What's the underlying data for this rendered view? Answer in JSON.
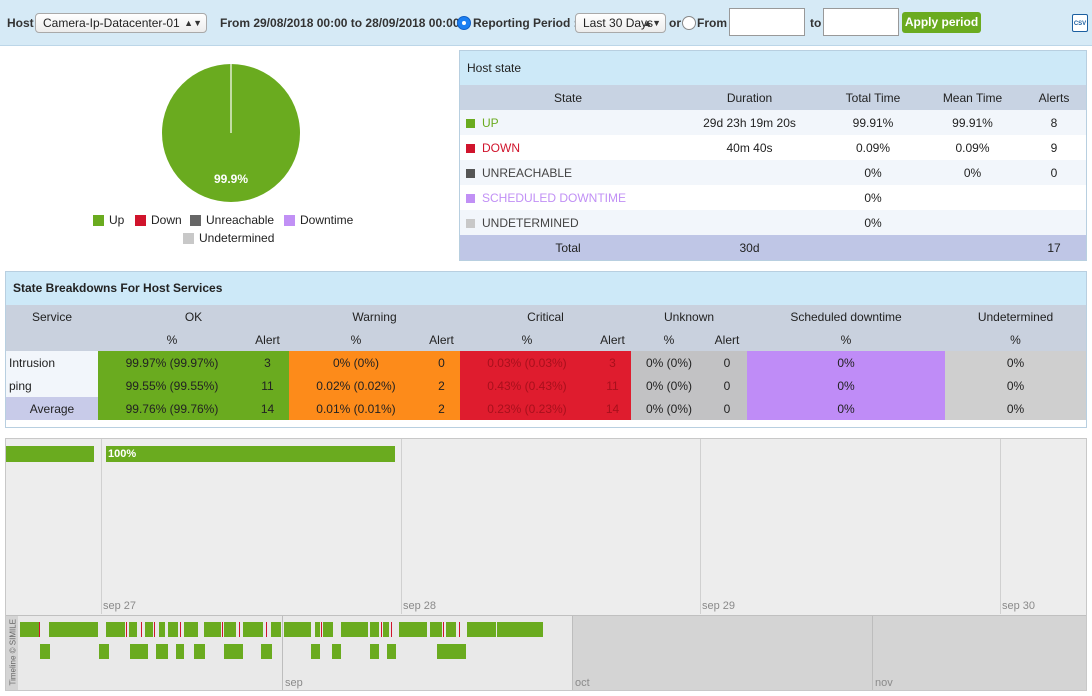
{
  "topbar": {
    "host_label": "Host",
    "host_value": "Camera-Ip-Datacenter-01",
    "date_range": "From 29/08/2018 00:00 to 28/09/2018 00:00",
    "reporting_period_label": "Reporting Period :",
    "period_value": "Last 30 Days",
    "or_label": "or",
    "from_label": "From",
    "to_label": "to",
    "from_value": "",
    "to_value": "",
    "apply_label": "Apply period",
    "csv_label": "CSV"
  },
  "pie": {
    "label": "99.9%",
    "legend": [
      {
        "name": "Up",
        "color": "#6aab1f"
      },
      {
        "name": "Down",
        "color": "#d0142c"
      },
      {
        "name": "Unreachable",
        "color": "#666666"
      },
      {
        "name": "Downtime",
        "color": "#c190f5"
      },
      {
        "name": "Undetermined",
        "color": "#c8c8c8"
      }
    ]
  },
  "host_state": {
    "title": "Host state",
    "columns": [
      "State",
      "Duration",
      "Total Time",
      "Mean Time",
      "Alerts"
    ],
    "rows": [
      {
        "state": "UP",
        "color": "#6aab1f",
        "duration": "29d 23h 19m 20s",
        "total": "99.91%",
        "mean": "99.91%",
        "alerts": "8"
      },
      {
        "state": "DOWN",
        "color": "#d0142c",
        "duration": "40m 40s",
        "total": "0.09%",
        "mean": "0.09%",
        "alerts": "9"
      },
      {
        "state": "UNREACHABLE",
        "color": "#555555",
        "duration": "",
        "total": "0%",
        "mean": "0%",
        "alerts": "0"
      },
      {
        "state": "SCHEDULED DOWNTIME",
        "color": "#c190f5",
        "duration": "",
        "total": "0%",
        "mean": "",
        "alerts": ""
      },
      {
        "state": "UNDETERMINED",
        "color": "#c8c8c8",
        "duration": "",
        "total": "0%",
        "mean": "",
        "alerts": ""
      }
    ],
    "footer": {
      "label": "Total",
      "duration": "30d",
      "alerts": "17"
    }
  },
  "services": {
    "title": "State Breakdowns For Host Services",
    "groups": [
      "Service",
      "OK",
      "Warning",
      "Critical",
      "Unknown",
      "Scheduled downtime",
      "Undetermined"
    ],
    "subheaders": {
      "pct": "%",
      "alert": "Alert"
    },
    "rows": [
      {
        "name": "Intrusion",
        "ok": "99.97% (99.97%)",
        "ok_alert": "3",
        "warn": "0% (0%)",
        "warn_alert": "0",
        "crit": "0.03% (0.03%)",
        "crit_alert": "3",
        "unk": "0% (0%)",
        "unk_alert": "0",
        "sched": "0%",
        "undet": "0%"
      },
      {
        "name": "ping",
        "ok": "99.55% (99.55%)",
        "ok_alert": "11",
        "warn": "0.02% (0.02%)",
        "warn_alert": "2",
        "crit": "0.43% (0.43%)",
        "crit_alert": "11",
        "unk": "0% (0%)",
        "unk_alert": "0",
        "sched": "0%",
        "undet": "0%"
      },
      {
        "name": "Average",
        "ok": "99.76% (99.76%)",
        "ok_alert": "14",
        "warn": "0.01% (0.01%)",
        "warn_alert": "2",
        "crit": "0.23% (0.23%)",
        "crit_alert": "14",
        "unk": "0% (0%)",
        "unk_alert": "0",
        "sched": "0%",
        "undet": "0%"
      }
    ]
  },
  "timeline": {
    "bar_label": "100%",
    "ticks": [
      "sep 27",
      "sep 28",
      "sep 29",
      "sep 30"
    ],
    "band_ticks": [
      "sep",
      "oct",
      "nov"
    ],
    "vertical_label": "Timeline © SIMILE"
  },
  "colors": {
    "ok": "#6aab1f",
    "warning": "#fd8b1a",
    "critical": "#df1c2e",
    "unknown": "#c2c2c4",
    "downtime": "#bf8cf7",
    "undetermined": "#cfcfcf",
    "header": "#cde9f8"
  }
}
